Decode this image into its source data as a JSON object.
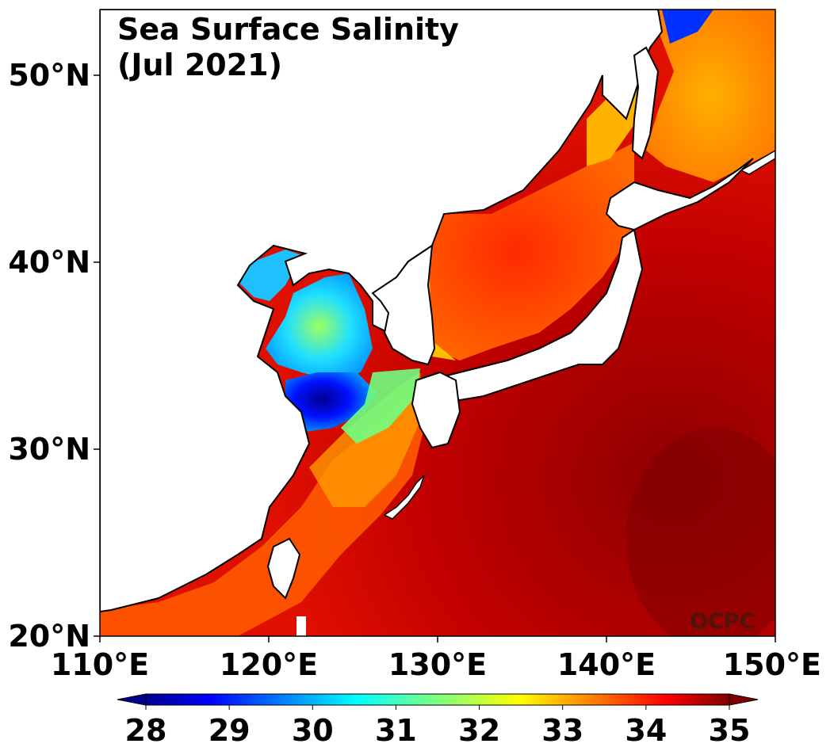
{
  "title_line1": "Sea Surface Salinity",
  "title_line2": "(Jul 2021)",
  "credit": "OCPC",
  "lat_labels": [
    "50°N",
    "40°N",
    "30°N",
    "20°N"
  ],
  "lon_labels": [
    "110°E",
    "120°E",
    "130°E",
    "140°E",
    "150°E"
  ],
  "colorbar": {
    "min": 28,
    "max": 35,
    "extend": "both",
    "colormap": "jet",
    "tick_labels": [
      "28",
      "29",
      "30",
      "31",
      "32",
      "33",
      "34",
      "35"
    ]
  },
  "map": {
    "lon_range": [
      110,
      150
    ],
    "lat_range": [
      20,
      53.5
    ],
    "variable": "Sea Surface Salinity",
    "land_color": "#ffffff",
    "coastline_color": "#000000"
  }
}
